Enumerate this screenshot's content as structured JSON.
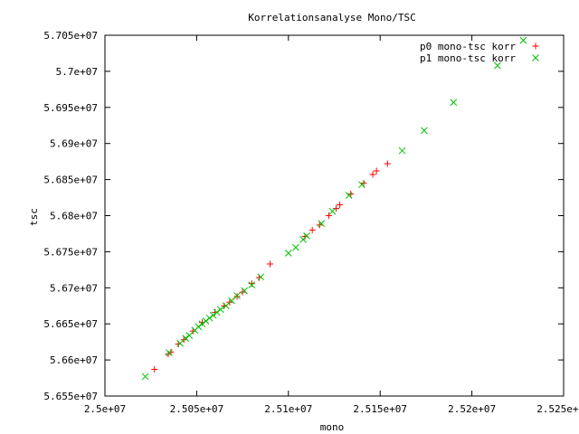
{
  "chart_data": {
    "type": "scatter",
    "title": "Korrelationsanalyse Mono/TSC",
    "xlabel": "mono",
    "ylabel": "tsc",
    "xlim": [
      25000000,
      25250000
    ],
    "ylim": [
      56550000,
      57050000
    ],
    "x_ticks": [
      {
        "value": 25000000,
        "label": "2.5e+07"
      },
      {
        "value": 25050000,
        "label": "2.505e+07"
      },
      {
        "value": 25100000,
        "label": "2.51e+07"
      },
      {
        "value": 25150000,
        "label": "2.515e+07"
      },
      {
        "value": 25200000,
        "label": "2.52e+07"
      },
      {
        "value": 25250000,
        "label": "2.525e+07"
      }
    ],
    "y_ticks": [
      {
        "value": 56550000,
        "label": "5.655e+07"
      },
      {
        "value": 56600000,
        "label": "5.66e+07"
      },
      {
        "value": 56650000,
        "label": "5.665e+07"
      },
      {
        "value": 56700000,
        "label": "5.67e+07"
      },
      {
        "value": 56750000,
        "label": "5.675e+07"
      },
      {
        "value": 56800000,
        "label": "5.68e+07"
      },
      {
        "value": 56850000,
        "label": "5.685e+07"
      },
      {
        "value": 56900000,
        "label": "5.69e+07"
      },
      {
        "value": 56950000,
        "label": "5.695e+07"
      },
      {
        "value": 57000000,
        "label": "5.7e+07"
      },
      {
        "value": 57050000,
        "label": "5.705e+07"
      }
    ],
    "grid": false,
    "legend_position": "top-right",
    "series": [
      {
        "name": "p0 mono-tsc korr",
        "marker": "plus",
        "color": "#ff0000",
        "points": [
          [
            25027000,
            56587000
          ],
          [
            25034500,
            56608000
          ],
          [
            25036000,
            56611000
          ],
          [
            25040000,
            56622000
          ],
          [
            25043000,
            56628000
          ],
          [
            25048000,
            56640000
          ],
          [
            25053000,
            56652000
          ],
          [
            25060000,
            56666000
          ],
          [
            25065000,
            56675000
          ],
          [
            25068000,
            56680000
          ],
          [
            25072000,
            56688000
          ],
          [
            25075000,
            56694000
          ],
          [
            25080000,
            56706000
          ],
          [
            25084000,
            56714000
          ],
          [
            25090000,
            56733000
          ],
          [
            25109000,
            56771000
          ],
          [
            25113000,
            56780000
          ],
          [
            25117000,
            56787000
          ],
          [
            25122000,
            56800000
          ],
          [
            25126000,
            56810000
          ],
          [
            25128000,
            56815000
          ],
          [
            25134000,
            56830000
          ],
          [
            25141000,
            56845000
          ],
          [
            25146000,
            56857000
          ],
          [
            25148000,
            56862000
          ],
          [
            25154000,
            56872000
          ]
        ]
      },
      {
        "name": "p1 mono-tsc korr",
        "marker": "cross",
        "color": "#00c000",
        "points": [
          [
            25022000,
            56577000
          ],
          [
            25035000,
            56610000
          ],
          [
            25041000,
            56623000
          ],
          [
            25044000,
            56630000
          ],
          [
            25046000,
            56634000
          ],
          [
            25049000,
            56641000
          ],
          [
            25051000,
            56646000
          ],
          [
            25053000,
            56650000
          ],
          [
            25055000,
            56654000
          ],
          [
            25057000,
            56658000
          ],
          [
            25059000,
            56662000
          ],
          [
            25061000,
            56666000
          ],
          [
            25063000,
            56670000
          ],
          [
            25066000,
            56675000
          ],
          [
            25069000,
            56682000
          ],
          [
            25072000,
            56689000
          ],
          [
            25076000,
            56696000
          ],
          [
            25080000,
            56704000
          ],
          [
            25085000,
            56715000
          ],
          [
            25100000,
            56748000
          ],
          [
            25104000,
            56756000
          ],
          [
            25108000,
            56767000
          ],
          [
            25110000,
            56772000
          ],
          [
            25118000,
            56789000
          ],
          [
            25124000,
            56806000
          ],
          [
            25133000,
            56828000
          ],
          [
            25140000,
            56843000
          ],
          [
            25162000,
            56890000
          ],
          [
            25174000,
            56918000
          ],
          [
            25190000,
            56957000
          ],
          [
            25214000,
            57008000
          ],
          [
            25228000,
            57043000
          ]
        ]
      }
    ]
  }
}
